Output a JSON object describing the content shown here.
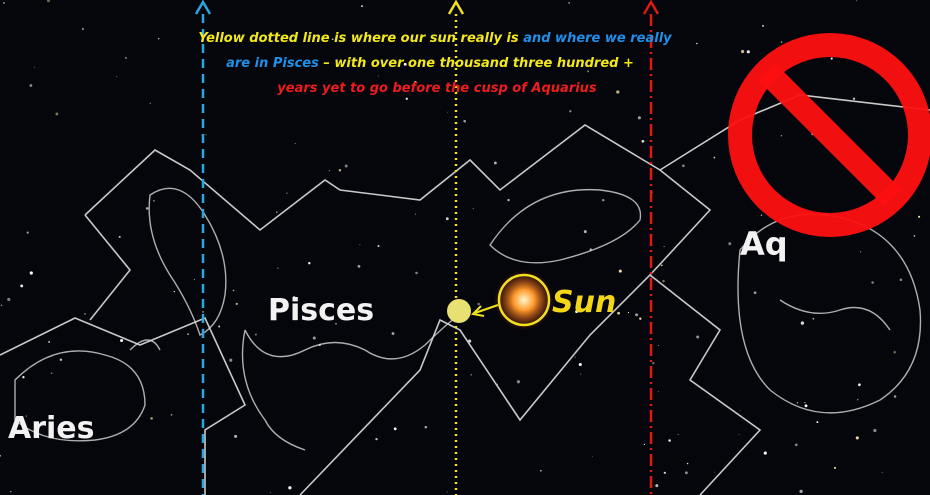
{
  "caption": {
    "line1_yellow": "Yellow dotted line is where our sun really is",
    "line1_blue": "and where we really",
    "line2_blue": "are in Pisces",
    "line2_yellow": "– with over  one thousand three  hundred +",
    "line3_red": "years yet to go before the cusp of  Aquarius"
  },
  "labels": {
    "pisces": "Pisces",
    "aries": "Aries",
    "sun": "Sun",
    "aquarius": "Aq"
  }
}
